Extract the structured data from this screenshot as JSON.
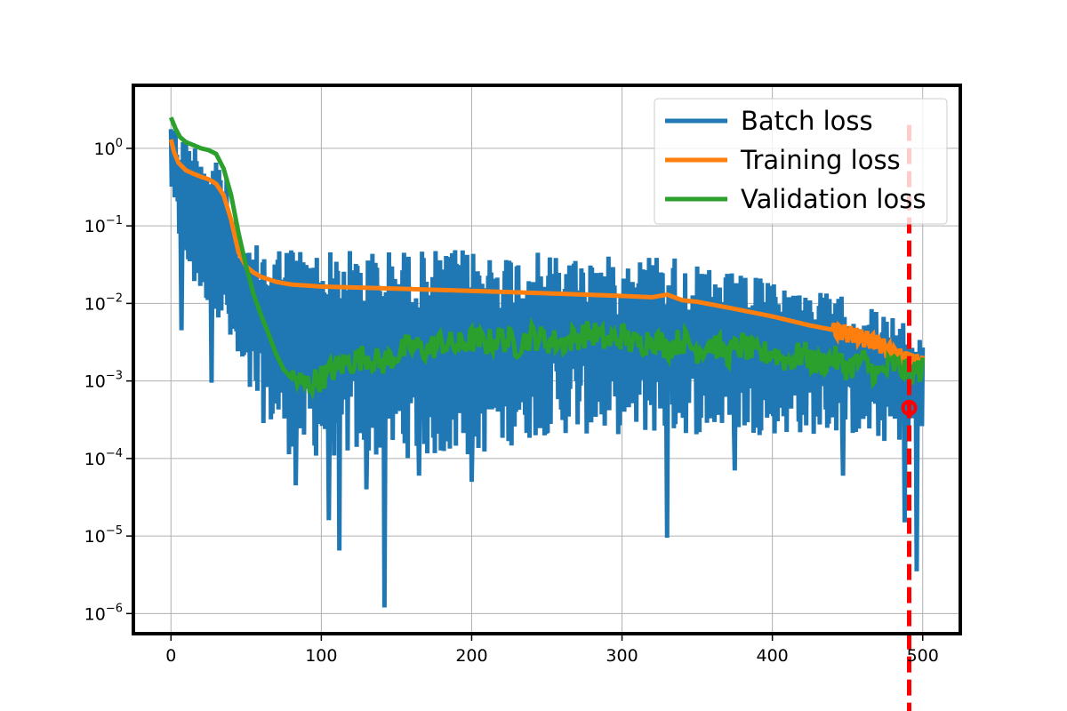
{
  "chart_data": {
    "type": "line",
    "title": "",
    "xlabel": "",
    "ylabel": "",
    "xlim": [
      -25,
      525
    ],
    "ylim": [
      5.5e-07,
      6.5
    ],
    "yscale": "log",
    "grid": true,
    "legend_position": "top-right",
    "x_ticks": [
      0,
      100,
      200,
      300,
      400,
      500
    ],
    "x_tick_labels": [
      "0",
      "100",
      "200",
      "300",
      "400",
      "500"
    ],
    "y_ticks": [
      1e-06,
      1e-05,
      0.0001,
      0.001,
      0.01,
      0.1,
      1
    ],
    "y_tick_labels": [
      {
        "base": "10",
        "exp": "−6"
      },
      {
        "base": "10",
        "exp": "−5"
      },
      {
        "base": "10",
        "exp": "−4"
      },
      {
        "base": "10",
        "exp": "−3"
      },
      {
        "base": "10",
        "exp": "−2"
      },
      {
        "base": "10",
        "exp": "−1"
      },
      {
        "base": "10",
        "exp": "0"
      }
    ],
    "series": [
      {
        "name": "Batch loss",
        "color": "#1f77b4",
        "style": "noisy-band",
        "upper": {
          "x": [
            0,
            2,
            5,
            10,
            15,
            20,
            25,
            30,
            35,
            40,
            45,
            50,
            60,
            70,
            80,
            100,
            150,
            200,
            250,
            300,
            330,
            350,
            400,
            450,
            480,
            500
          ],
          "y": [
            3.0,
            2.2,
            1.8,
            1.5,
            1.3,
            1.2,
            1.1,
            1.0,
            0.7,
            0.2,
            0.06,
            0.05,
            0.06,
            0.06,
            0.06,
            0.05,
            0.05,
            0.05,
            0.045,
            0.04,
            0.05,
            0.03,
            0.02,
            0.012,
            0.007,
            0.004
          ]
        },
        "lower": {
          "x": [
            0,
            2,
            5,
            10,
            20,
            30,
            40,
            50,
            60,
            70,
            80,
            100,
            150,
            200,
            250,
            300,
            350,
            400,
            450,
            480,
            500
          ],
          "y": [
            0.3,
            0.1,
            0.05,
            0.02,
            0.01,
            0.008,
            0.002,
            0.0006,
            0.0003,
            0.0002,
            0.0001,
            0.0001,
            0.0001,
            0.0001,
            0.0002,
            0.0002,
            0.0002,
            0.0002,
            0.0002,
            0.00015,
            0.0002
          ]
        },
        "spikes": [
          {
            "x": 7,
            "y": 0.0045
          },
          {
            "x": 27,
            "y": 0.00095
          },
          {
            "x": 83,
            "y": 4.5e-05
          },
          {
            "x": 105,
            "y": 1.6e-05
          },
          {
            "x": 112,
            "y": 6.5e-06
          },
          {
            "x": 130,
            "y": 4e-05
          },
          {
            "x": 142,
            "y": 1.2e-06
          },
          {
            "x": 165,
            "y": 6e-05
          },
          {
            "x": 200,
            "y": 5e-05
          },
          {
            "x": 330,
            "y": 9.5e-06
          },
          {
            "x": 375,
            "y": 7e-05
          },
          {
            "x": 447,
            "y": 6e-05
          },
          {
            "x": 488,
            "y": 1.5e-05
          },
          {
            "x": 496,
            "y": 3.5e-06
          }
        ]
      },
      {
        "name": "Training loss",
        "color": "#ff7f0e",
        "x": [
          0,
          2,
          5,
          10,
          15,
          20,
          25,
          30,
          35,
          40,
          45,
          50,
          55,
          60,
          70,
          80,
          90,
          100,
          150,
          200,
          250,
          300,
          320,
          330,
          340,
          350,
          375,
          400,
          425,
          450,
          470,
          480,
          490,
          500
        ],
        "y": [
          1.3,
          0.9,
          0.65,
          0.52,
          0.47,
          0.43,
          0.4,
          0.35,
          0.25,
          0.12,
          0.045,
          0.03,
          0.025,
          0.022,
          0.019,
          0.0175,
          0.017,
          0.0165,
          0.0155,
          0.0145,
          0.0135,
          0.0125,
          0.012,
          0.013,
          0.011,
          0.0105,
          0.0085,
          0.0068,
          0.0052,
          0.0042,
          0.0032,
          0.0023,
          0.0019,
          0.0017
        ]
      },
      {
        "name": "Validation loss",
        "color": "#2ca02c",
        "x": [
          0,
          3,
          6,
          10,
          15,
          20,
          25,
          30,
          35,
          40,
          45,
          50,
          55,
          60,
          65,
          70,
          75,
          80,
          90,
          100,
          110,
          120,
          130,
          140,
          150,
          160,
          170,
          180,
          190,
          200,
          210,
          220,
          230,
          240,
          250,
          260,
          270,
          280,
          290,
          300,
          310,
          320,
          330,
          340,
          350,
          360,
          370,
          380,
          390,
          400,
          410,
          420,
          430,
          440,
          450,
          460,
          470,
          480,
          490,
          500
        ],
        "y": [
          2.5,
          1.8,
          1.4,
          1.2,
          1.1,
          1.0,
          0.95,
          0.85,
          0.55,
          0.25,
          0.08,
          0.03,
          0.013,
          0.007,
          0.004,
          0.0022,
          0.0014,
          0.0011,
          0.0009,
          0.0011,
          0.0015,
          0.0018,
          0.0021,
          0.0017,
          0.0022,
          0.0028,
          0.0025,
          0.0032,
          0.0028,
          0.0034,
          0.0031,
          0.0036,
          0.0029,
          0.0038,
          0.0033,
          0.0031,
          0.0037,
          0.0042,
          0.0032,
          0.0038,
          0.0029,
          0.0036,
          0.0027,
          0.0034,
          0.0025,
          0.0031,
          0.0022,
          0.0029,
          0.0021,
          0.0024,
          0.0018,
          0.0023,
          0.0016,
          0.002,
          0.0015,
          0.0018,
          0.0012,
          0.0016,
          0.0013,
          0.0014
        ]
      }
    ],
    "annotations": [
      {
        "type": "vline",
        "x": 491,
        "color": "#ff0000",
        "style": "dashed",
        "y_top": 2.0
      },
      {
        "type": "marker",
        "x": 491,
        "y": 0.00045,
        "color": "#ff0000"
      }
    ]
  }
}
